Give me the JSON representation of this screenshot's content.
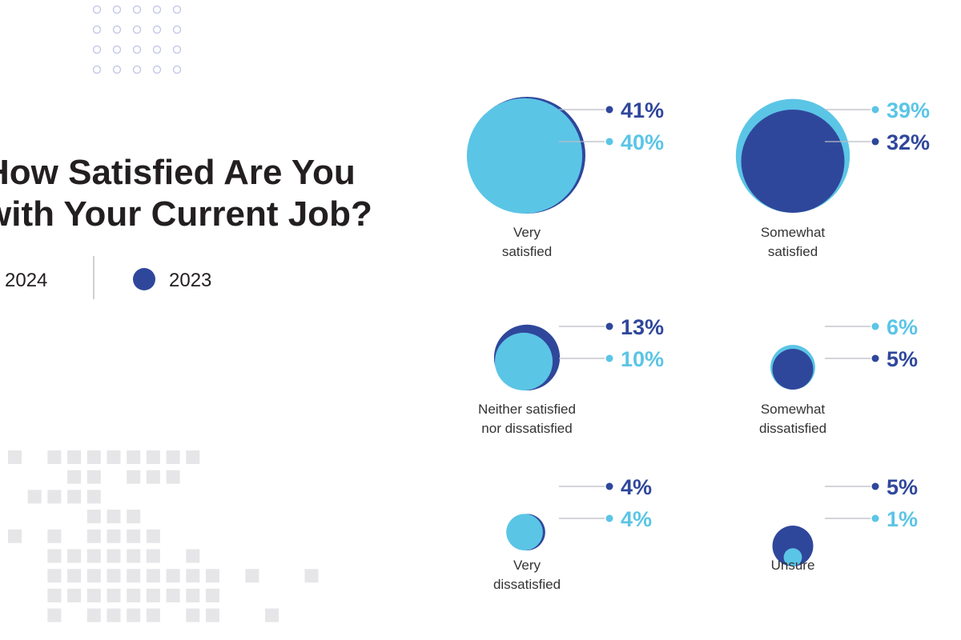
{
  "colors": {
    "year_2024": "#5bc5e6",
    "year_2023": "#2f479b",
    "title": "#231f20",
    "decor_dots": "#c7cbe8",
    "decor_squares": "#e6e6e8",
    "connector": "#b9bcc4",
    "divider": "#d0d0d0"
  },
  "chart_data": {
    "type": "bubble",
    "title_lines": [
      "How Satisfied Are You",
      "with Your Current Job?"
    ],
    "legend": [
      {
        "label": "2024",
        "color": "#5bc5e6"
      },
      {
        "label": "2023",
        "color": "#2f479b"
      }
    ],
    "series_names": [
      "2024",
      "2023"
    ],
    "categories": [
      {
        "label_lines": [
          "Very",
          "satisfied"
        ],
        "values": {
          "2024": 40,
          "2023": 41
        }
      },
      {
        "label_lines": [
          "Somewhat",
          "satisfied"
        ],
        "values": {
          "2024": 39,
          "2023": 32
        }
      },
      {
        "label_lines": [
          "Neither satisfied",
          "nor dissatisfied"
        ],
        "values": {
          "2024": 10,
          "2023": 13
        }
      },
      {
        "label_lines": [
          "Somewhat",
          "dissatisfied"
        ],
        "values": {
          "2024": 6,
          "2023": 5
        }
      },
      {
        "label_lines": [
          "Very",
          "dissatisfied"
        ],
        "values": {
          "2024": 4,
          "2023": 4
        }
      },
      {
        "label_lines": [
          "Unsure"
        ],
        "values": {
          "2024": 1,
          "2023": 5
        }
      }
    ],
    "unit": "%"
  }
}
